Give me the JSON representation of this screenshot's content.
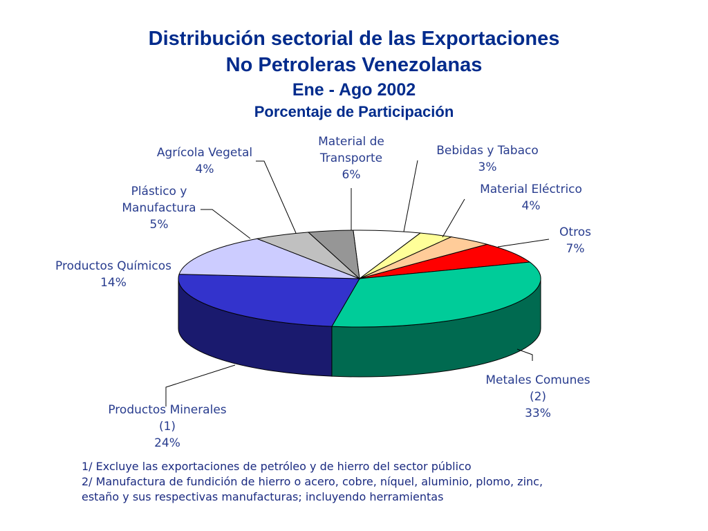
{
  "title": {
    "line1": "Distribución sectorial de las Exportaciones",
    "line2": "No Petroleras Venezolanas",
    "line3": "Ene - Ago 2002",
    "line4": "Porcentaje de Participación"
  },
  "chart_data": {
    "type": "pie",
    "title": "Distribución sectorial de las Exportaciones No Petroleras Venezolanas",
    "subtitle": "Ene - Ago 2002 · Porcentaje de Participación",
    "unit": "%",
    "slices": [
      {
        "name": "Material de Transporte",
        "label_lines": [
          "Material de",
          "Transporte",
          "6%"
        ],
        "value": 6,
        "color": "#ffffff",
        "side_color": "#cfcfcf"
      },
      {
        "name": "Bebidas y Tabaco",
        "label_lines": [
          "Bebidas y Tabaco",
          "3%"
        ],
        "value": 3,
        "color": "#ffff99",
        "side_color": "#c8c870"
      },
      {
        "name": "Material Eléctrico",
        "label_lines": [
          "Material Eléctrico",
          "4%"
        ],
        "value": 4,
        "color": "#ffcc99",
        "side_color": "#c89a6c"
      },
      {
        "name": "Otros",
        "label_lines": [
          "Otros",
          "7%"
        ],
        "value": 7,
        "color": "#ff0000",
        "side_color": "#a00000"
      },
      {
        "name": "Metales Comunes (2)",
        "label_lines": [
          "Metales Comunes",
          "(2)",
          "33%"
        ],
        "value": 33,
        "color": "#00cc99",
        "side_color": "#006a50"
      },
      {
        "name": "Productos Minerales (1)",
        "label_lines": [
          "Productos Minerales",
          "(1)",
          "24%"
        ],
        "value": 24,
        "color": "#3333cc",
        "side_color": "#1a1a6e"
      },
      {
        "name": "Productos Químicos",
        "label_lines": [
          "Productos Químicos",
          "14%"
        ],
        "value": 14,
        "color": "#ccccff",
        "side_color": "#9090c0"
      },
      {
        "name": "Plástico y Manufactura",
        "label_lines": [
          "Plástico y",
          "Manufactura",
          "5%"
        ],
        "value": 5,
        "color": "#c0c0c0",
        "side_color": "#808080"
      },
      {
        "name": "Agrícola Vegetal",
        "label_lines": [
          "Agrícola Vegetal",
          "4%"
        ],
        "value": 4,
        "color": "#969696",
        "side_color": "#606060"
      }
    ]
  },
  "notes": {
    "note1": "1/ Excluye las exportaciones de petróleo y de hierro del sector público",
    "note2a": "2/ Manufactura de fundición de hierro o acero, cobre, níquel, aluminio, plomo, zinc,",
    "note2b": "estaño y sus respectivas manufacturas; incluyendo herramientas"
  }
}
